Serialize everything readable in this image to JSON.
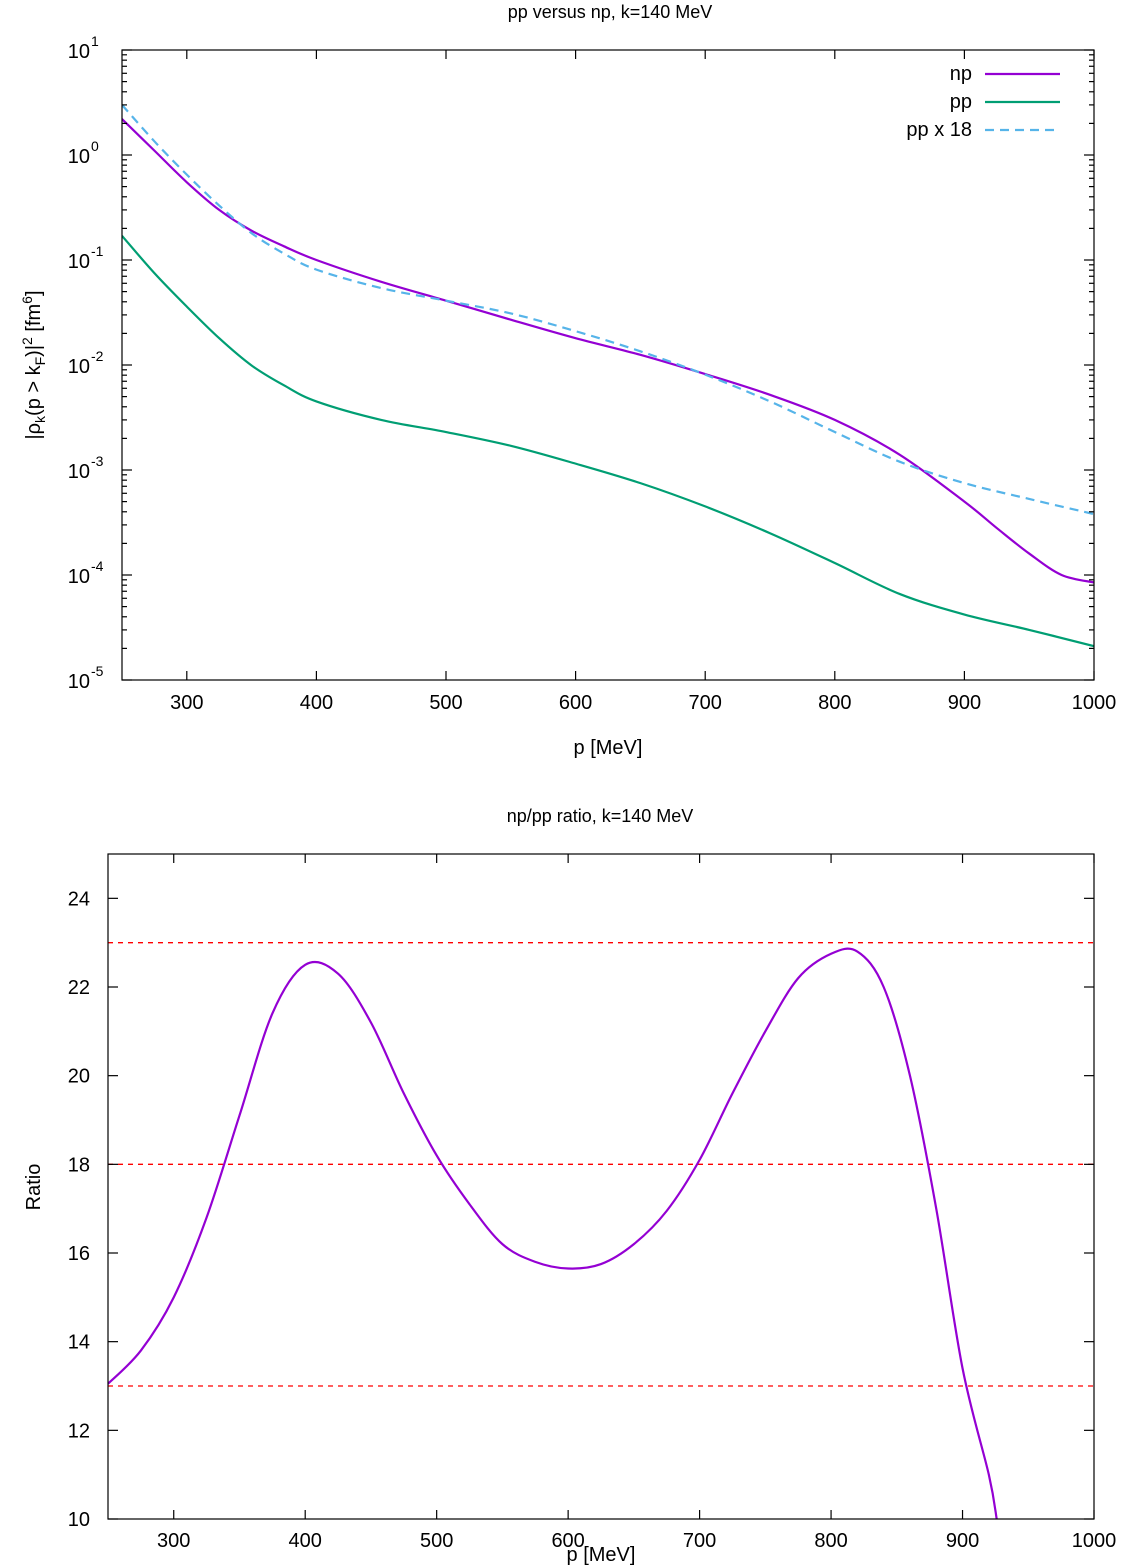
{
  "chart_data": [
    {
      "type": "line",
      "title": "pp versus np,  k=140 MeV",
      "xlabel": "p [MeV]",
      "ylabel": {
        "base": "|ρ",
        "sub1": "k",
        "mid1": "(p > k",
        "sub2": "F",
        "mid2": ")|",
        "sup1": "2",
        "mid3": " [fm",
        "sup2": "6",
        "end": "]"
      },
      "xlim": [
        250,
        1000
      ],
      "ylim": [
        1e-05,
        10
      ],
      "yscale": "log",
      "x_ticks": [
        300,
        400,
        500,
        600,
        700,
        800,
        900,
        1000
      ],
      "x_tick_labels": [
        "300",
        "400",
        "500",
        "600",
        "700",
        "800",
        "900",
        "1000"
      ],
      "y_ticks": [
        {
          "value": 1e-05,
          "base": "10",
          "exp": "-5"
        },
        {
          "value": 0.0001,
          "base": "10",
          "exp": "-4"
        },
        {
          "value": 0.001,
          "base": "10",
          "exp": "-3"
        },
        {
          "value": 0.01,
          "base": "10",
          "exp": "-2"
        },
        {
          "value": 0.1,
          "base": "10",
          "exp": "-1"
        },
        {
          "value": 1,
          "base": "10",
          "exp": "0"
        },
        {
          "value": 10,
          "base": "10",
          "exp": "1"
        }
      ],
      "grid": false,
      "legend_position": "top-right",
      "series": [
        {
          "name": "np",
          "color": "#9400d3",
          "dash": "solid",
          "x": [
            250,
            275,
            300,
            325,
            350,
            375,
            400,
            450,
            500,
            550,
            600,
            650,
            700,
            750,
            800,
            850,
            900,
            925,
            950,
            975,
            1000
          ],
          "y": [
            2.2,
            1.1,
            0.55,
            0.3,
            0.19,
            0.135,
            0.1,
            0.062,
            0.041,
            0.027,
            0.018,
            0.0125,
            0.0082,
            0.0052,
            0.003,
            0.0014,
            0.0005,
            0.00028,
            0.00016,
            0.0001,
            8.5e-05
          ]
        },
        {
          "name": "pp",
          "color": "#009e73",
          "dash": "solid",
          "x": [
            250,
            275,
            300,
            325,
            350,
            375,
            400,
            450,
            500,
            550,
            600,
            650,
            700,
            750,
            800,
            850,
            900,
            950,
            1000
          ],
          "y": [
            0.17,
            0.075,
            0.036,
            0.018,
            0.0099,
            0.0064,
            0.0045,
            0.003,
            0.0023,
            0.0017,
            0.00115,
            0.00075,
            0.00045,
            0.00025,
            0.00013,
            6.6e-05,
            4.2e-05,
            3e-05,
            2.1e-05
          ]
        },
        {
          "name": "pp x 18",
          "color": "#56b4e9",
          "dash": "dashed",
          "x": [
            250,
            275,
            300,
            325,
            350,
            375,
            400,
            450,
            500,
            550,
            600,
            650,
            700,
            750,
            800,
            850,
            900,
            950,
            1000
          ],
          "y": [
            3.0,
            1.35,
            0.65,
            0.33,
            0.18,
            0.115,
            0.081,
            0.054,
            0.041,
            0.031,
            0.021,
            0.0135,
            0.0081,
            0.0045,
            0.0023,
            0.0012,
            0.00075,
            0.00053,
            0.00038
          ]
        }
      ]
    },
    {
      "type": "line",
      "title": "np/pp ratio, k=140 MeV",
      "xlabel": "p [MeV]",
      "ylabel": "Ratio",
      "xlim": [
        250,
        1000
      ],
      "ylim": [
        10,
        25
      ],
      "yscale": "linear",
      "x_ticks": [
        300,
        400,
        500,
        600,
        700,
        800,
        900,
        1000
      ],
      "x_tick_labels": [
        "300",
        "400",
        "500",
        "600",
        "700",
        "800",
        "900",
        "1000"
      ],
      "y_ticks": [
        10,
        12,
        14,
        16,
        18,
        20,
        22,
        24
      ],
      "y_tick_labels": [
        "10",
        "12",
        "14",
        "16",
        "18",
        "20",
        "22",
        "24"
      ],
      "grid": false,
      "reference_lines": [
        {
          "y": 23,
          "color": "#ff0000"
        },
        {
          "y": 18,
          "color": "#ff0000"
        },
        {
          "y": 13,
          "color": "#ff0000"
        }
      ],
      "series": [
        {
          "color": "#9400d3",
          "x": [
            250,
            275,
            300,
            325,
            350,
            375,
            400,
            425,
            450,
            475,
            500,
            525,
            550,
            575,
            600,
            625,
            650,
            675,
            700,
            725,
            750,
            775,
            800,
            820,
            840,
            860,
            880,
            900,
            920,
            926
          ],
          "y": [
            13.05,
            13.8,
            15.0,
            16.8,
            19.1,
            21.4,
            22.5,
            22.3,
            21.2,
            19.6,
            18.2,
            17.1,
            16.2,
            15.8,
            15.65,
            15.75,
            16.2,
            16.95,
            18.1,
            19.6,
            21.0,
            22.2,
            22.75,
            22.8,
            22.0,
            20.0,
            17.0,
            13.4,
            11.0,
            10.0
          ]
        }
      ]
    }
  ]
}
